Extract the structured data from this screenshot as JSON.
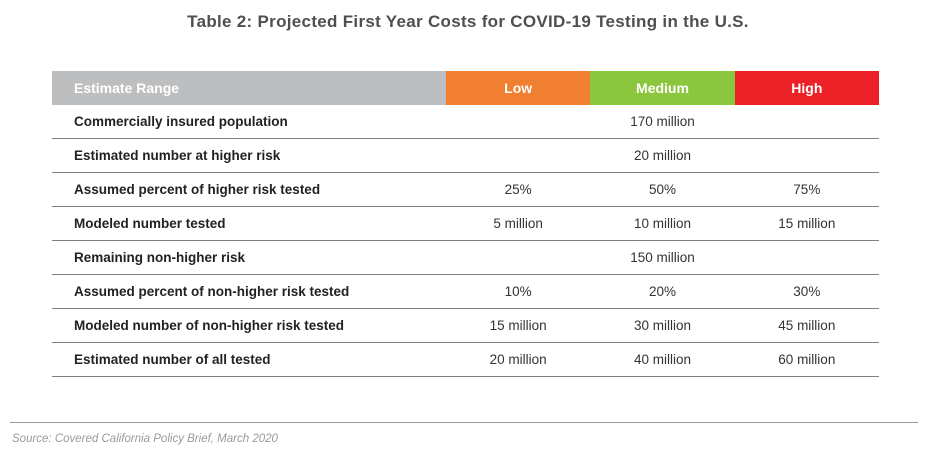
{
  "title": "Table 2: Projected First Year Costs for COVID-19 Testing in the U.S.",
  "header": {
    "label": "Estimate Range",
    "columns": [
      {
        "label": "Low",
        "color": "#f07f32"
      },
      {
        "label": "Medium",
        "color": "#8cc63e"
      },
      {
        "label": "High",
        "color": "#ec2027"
      }
    ]
  },
  "rows": [
    {
      "label": "Commercially insured population",
      "value": "170 million"
    },
    {
      "label": "Estimated number at higher risk",
      "value": "20 million"
    },
    {
      "label": "Assumed percent of higher risk tested",
      "values": [
        "25%",
        "50%",
        "75%"
      ]
    },
    {
      "label": "Modeled number tested",
      "values": [
        "5 million",
        "10 million",
        "15 million"
      ]
    },
    {
      "label": "Remaining non-higher risk",
      "value": "150 million"
    },
    {
      "label": "Assumed percent of non-higher risk tested",
      "values": [
        "10%",
        "20%",
        "30%"
      ]
    },
    {
      "label": "Modeled number of non-higher risk tested",
      "values": [
        "15 million",
        "30 million",
        "45 million"
      ]
    },
    {
      "label": "Estimated number of all tested",
      "values": [
        "20 million",
        "40 million",
        "60 million"
      ]
    }
  ],
  "source": "Source: Covered California Policy Brief, March 2020"
}
